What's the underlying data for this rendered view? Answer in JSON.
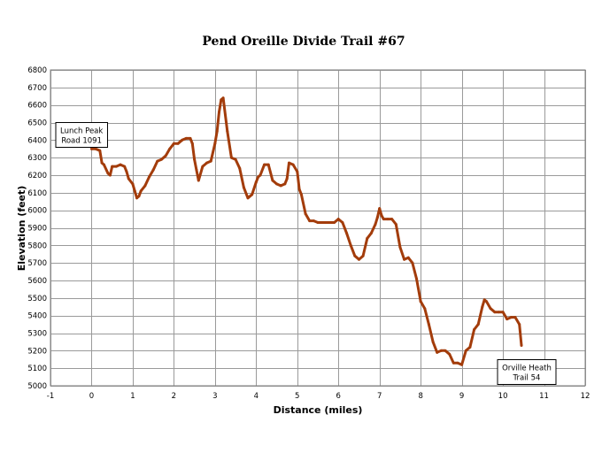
{
  "chart_data": {
    "type": "line",
    "title": "Pend Oreille Divide Trail #67",
    "xlabel": "Distance (miles)",
    "ylabel": "Elevation (feet)",
    "xlim": [
      -1,
      12
    ],
    "ylim": [
      5000,
      6800
    ],
    "x_ticks": [
      -1,
      0,
      1,
      2,
      3,
      4,
      5,
      6,
      7,
      8,
      9,
      10,
      11,
      12
    ],
    "y_ticks": [
      5000,
      5100,
      5200,
      5300,
      5400,
      5500,
      5600,
      5700,
      5800,
      5900,
      6000,
      6100,
      6200,
      6300,
      6400,
      6500,
      6600,
      6700,
      6800
    ],
    "grid": true,
    "line_color": "#a33c0b",
    "series": [
      {
        "x": [
          0.0,
          0.1,
          0.2,
          0.25,
          0.3,
          0.4,
          0.45,
          0.5,
          0.6,
          0.7,
          0.8,
          0.85,
          0.9,
          1.0,
          1.05,
          1.1,
          1.15,
          1.2,
          1.3,
          1.4,
          1.5,
          1.6,
          1.7,
          1.8,
          1.9,
          2.0,
          2.1,
          2.2,
          2.3,
          2.4,
          2.45,
          2.5,
          2.55,
          2.6,
          2.7,
          2.8,
          2.9,
          3.0,
          3.05,
          3.1,
          3.15,
          3.2,
          3.3,
          3.4,
          3.5,
          3.6,
          3.7,
          3.8,
          3.9,
          4.0,
          4.05,
          4.1,
          4.2,
          4.3,
          4.4,
          4.5,
          4.6,
          4.7,
          4.75,
          4.8,
          4.9,
          5.0,
          5.05,
          5.1,
          5.2,
          5.3,
          5.4,
          5.5,
          5.6,
          5.7,
          5.8,
          5.9,
          6.0,
          6.1,
          6.2,
          6.3,
          6.4,
          6.5,
          6.6,
          6.7,
          6.8,
          6.9,
          6.95,
          7.0,
          7.05,
          7.1,
          7.2,
          7.3,
          7.4,
          7.5,
          7.6,
          7.7,
          7.8,
          7.9,
          8.0,
          8.1,
          8.2,
          8.3,
          8.4,
          8.5,
          8.6,
          8.7,
          8.8,
          8.9,
          9.0,
          9.1,
          9.2,
          9.3,
          9.4,
          9.5,
          9.55,
          9.6,
          9.7,
          9.8,
          9.9,
          10.0,
          10.1,
          10.2,
          10.3,
          10.4,
          10.45
        ],
        "y": [
          6350,
          6350,
          6340,
          6270,
          6260,
          6210,
          6200,
          6250,
          6250,
          6260,
          6250,
          6220,
          6180,
          6150,
          6110,
          6070,
          6080,
          6110,
          6140,
          6190,
          6230,
          6280,
          6290,
          6310,
          6350,
          6380,
          6380,
          6400,
          6410,
          6410,
          6380,
          6290,
          6230,
          6170,
          6250,
          6270,
          6280,
          6380,
          6450,
          6560,
          6630,
          6640,
          6450,
          6300,
          6290,
          6240,
          6130,
          6070,
          6090,
          6160,
          6190,
          6200,
          6260,
          6260,
          6170,
          6150,
          6140,
          6150,
          6180,
          6270,
          6260,
          6220,
          6120,
          6090,
          5980,
          5940,
          5940,
          5930,
          5930,
          5930,
          5930,
          5930,
          5950,
          5930,
          5870,
          5800,
          5740,
          5720,
          5740,
          5840,
          5870,
          5920,
          5960,
          6010,
          5970,
          5950,
          5950,
          5950,
          5920,
          5790,
          5720,
          5730,
          5700,
          5610,
          5480,
          5440,
          5350,
          5250,
          5190,
          5200,
          5200,
          5180,
          5130,
          5130,
          5120,
          5200,
          5220,
          5320,
          5350,
          5450,
          5490,
          5480,
          5440,
          5420,
          5420,
          5420,
          5380,
          5390,
          5390,
          5350,
          5230
        ]
      }
    ],
    "annotations": [
      {
        "lines": [
          "Lunch Peak",
          "Road 1091"
        ],
        "x": 0.0,
        "y": 6350,
        "side": "start"
      },
      {
        "lines": [
          "Orville Heath",
          "Trail 54"
        ],
        "x": 10.45,
        "y": 5230,
        "side": "end"
      }
    ]
  }
}
